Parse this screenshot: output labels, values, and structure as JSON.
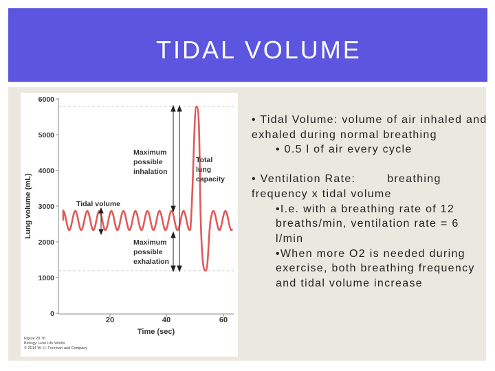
{
  "slide": {
    "title": "TIDAL VOLUME"
  },
  "figure": {
    "y_ticks": [
      "6000",
      "5000",
      "4000",
      "3000",
      "2000",
      "1000",
      "0"
    ],
    "x_ticks": [
      "20",
      "40",
      "60"
    ],
    "y_label": "Lung volume (mL)",
    "x_label": "Time (sec)",
    "annotations": {
      "max_inhalation": [
        "Maximum",
        "possible",
        "inhalation"
      ],
      "total_capacity": [
        "Total",
        "lung",
        "capacity"
      ],
      "tidal_volume": "Tidal volume",
      "max_exhalation": [
        "Maximum",
        "possible",
        "exhalation"
      ]
    },
    "credit": [
      "Figure 29.7b",
      "Biology: How Life Works",
      "© 2014 W. H. Freeman and Company"
    ],
    "colors": {
      "curve": "#e05a5a",
      "text": "#333333",
      "arrow": "#222222"
    }
  },
  "bullets": [
    {
      "text": "• Tidal Volume: volume of air inhaled and exhaled during normal breathing",
      "subs": [
        "• 0.5 l of air every cycle"
      ]
    },
    {
      "text": "• Ventilation Rate:        breathing frequency x tidal volume",
      "subs": [
        "•I.e. with a breathing rate of 12 breaths/min, ventilation rate = 6 l/min",
        "•When more O2 is needed during exercise, both breathing frequency and tidal volume increase"
      ]
    }
  ]
}
